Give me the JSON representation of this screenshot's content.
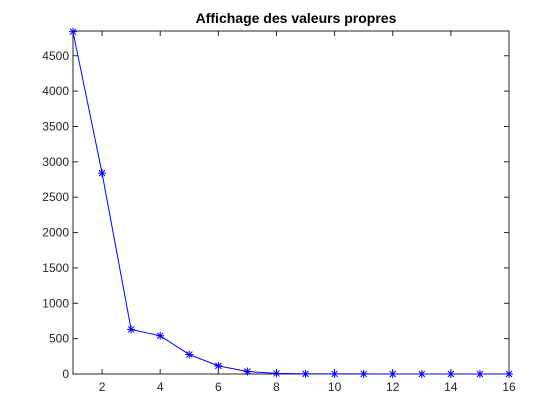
{
  "chart_data": {
    "type": "line",
    "title": "Affichage des valeurs propres",
    "xlabel": "",
    "ylabel": "",
    "xlim": [
      1,
      16
    ],
    "ylim": [
      0,
      4850
    ],
    "xticks": [
      2,
      4,
      6,
      8,
      10,
      12,
      14,
      16
    ],
    "yticks": [
      0,
      500,
      1000,
      1500,
      2000,
      2500,
      3000,
      3500,
      4000,
      4500
    ],
    "grid": false,
    "legend": "none",
    "series": [
      {
        "color": "#0000ff",
        "marker": "asterisk",
        "x": [
          1,
          2,
          3,
          4,
          5,
          6,
          7,
          8,
          9,
          10,
          11,
          12,
          13,
          14,
          15,
          16
        ],
        "y": [
          4840,
          2840,
          630,
          540,
          275,
          115,
          35,
          8,
          2,
          1,
          1,
          0,
          0,
          0,
          0,
          0
        ]
      }
    ]
  }
}
